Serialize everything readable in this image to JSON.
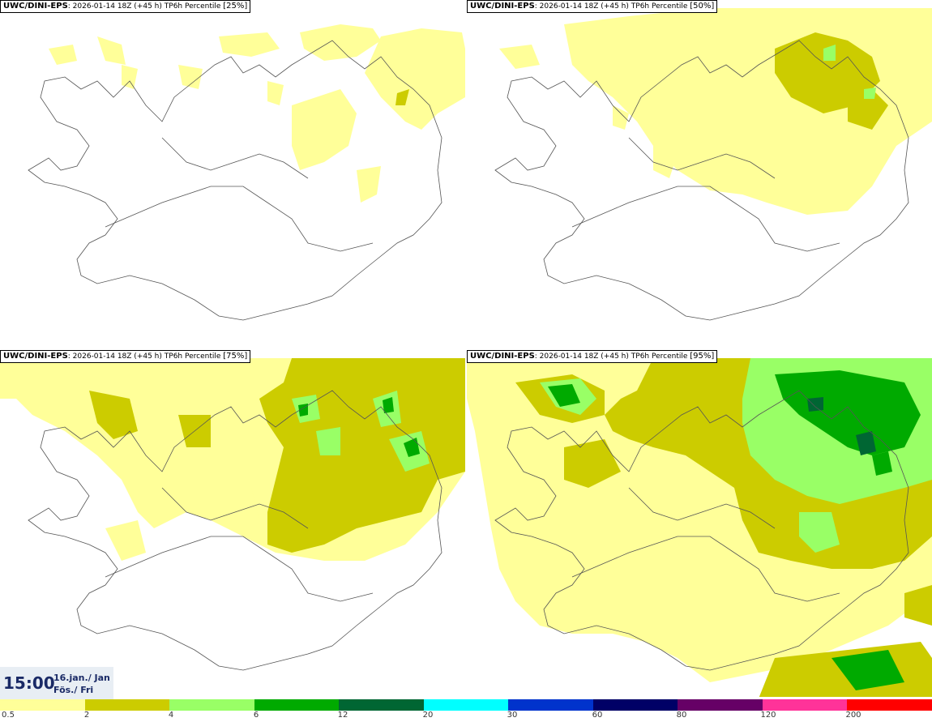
{
  "panels": [
    {
      "model": "UWC/DINI-EPS",
      "run": ": 2026-01-14 18Z (+45 h)",
      "field": "TP6h Percentile",
      "pct": "[25%]"
    },
    {
      "model": "UWC/DINI-EPS",
      "run": ": 2026-01-14 18Z (+45 h)",
      "field": "TP6h Percentile",
      "pct": "[50%]"
    },
    {
      "model": "UWC/DINI-EPS",
      "run": ": 2026-01-14 18Z (+45 h)",
      "field": "TP6h Percentile",
      "pct": "[75%]"
    },
    {
      "model": "UWC/DINI-EPS",
      "run": ": 2026-01-14 18Z (+45 h)",
      "field": "TP6h Percentile",
      "pct": "[95%]"
    }
  ],
  "valid_time": {
    "time": "15:00",
    "date": "16.jan./ Jan",
    "day": "Fös./ Fri"
  },
  "legend": {
    "colors": [
      "#ffff99",
      "#cccc00",
      "#99ff66",
      "#00aa00",
      "#006633",
      "#00ffff",
      "#0033cc",
      "#000066",
      "#660066",
      "#ff3399",
      "#ff0000"
    ],
    "ticks": [
      "0.5",
      "2",
      "4",
      "6",
      "12",
      "20",
      "30",
      "60",
      "80",
      "120",
      "200"
    ]
  }
}
